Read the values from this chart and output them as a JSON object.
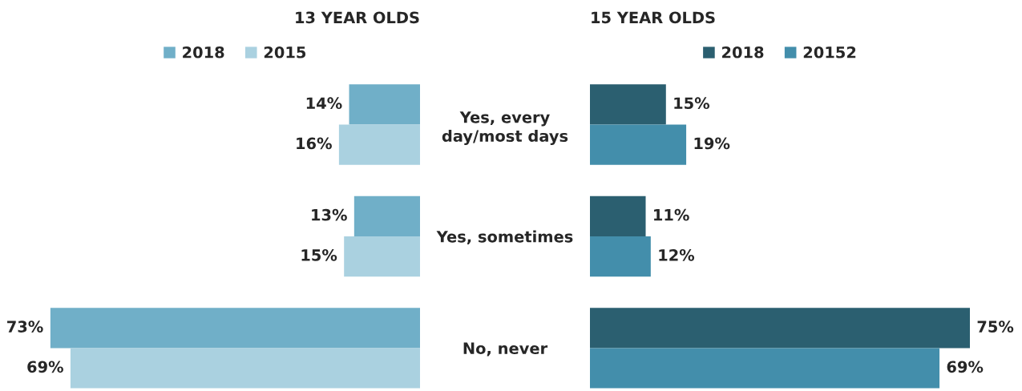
{
  "chart_data": [
    {
      "type": "bar",
      "orientation": "horizontal",
      "title": "13 YEAR OLDS",
      "categories": [
        "Yes, every day/most days",
        "Yes, sometimes",
        "No, never"
      ],
      "series": [
        {
          "name": "2018",
          "color": "#70afc8",
          "values": [
            14,
            13,
            73
          ],
          "value_labels": [
            "14%",
            "13%",
            "73%"
          ]
        },
        {
          "name": "2015",
          "color": "#aad1e0",
          "values": [
            16,
            15,
            69
          ],
          "value_labels": [
            "16%",
            "15%",
            "69%"
          ]
        }
      ],
      "xlim": [
        73,
        0
      ],
      "legend": "top",
      "tick_labels": "y"
    },
    {
      "type": "bar",
      "orientation": "horizontal",
      "title": "15 YEAR OLDS",
      "categories": [
        null,
        null,
        null
      ],
      "series": [
        {
          "name": "2018",
          "color": "#2b5f70",
          "values": [
            15,
            11,
            75
          ],
          "value_labels": [
            "15%",
            "11%",
            "75%"
          ]
        },
        {
          "name": "20152",
          "color": "#438eab",
          "values": [
            19,
            12,
            69
          ],
          "value_labels": [
            "19%",
            "12%",
            "69%"
          ]
        }
      ],
      "xlim": [
        0,
        75
      ],
      "legend": "top",
      "tick_labels": false
    }
  ]
}
